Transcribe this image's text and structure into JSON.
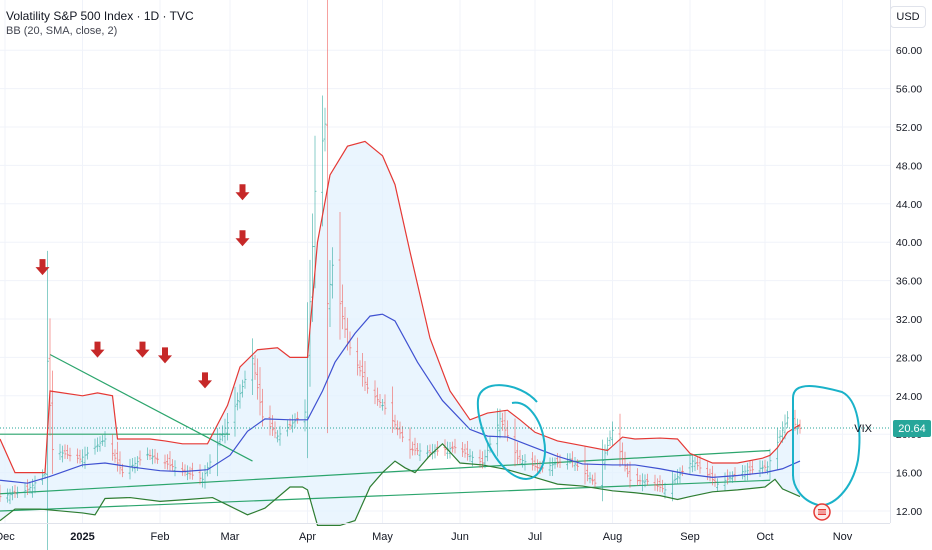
{
  "header": {
    "title": "Volatility S&P 500 Index · 1D · TVC",
    "indicator": "BB (20, SMA, close, 2)",
    "currency_button": "USD"
  },
  "colors": {
    "price_bar": "#9e9e9e",
    "up_bar": "#26a69a",
    "down_bar": "#ef5350",
    "bb_upper": "#e53935",
    "bb_basis": "#3f51d1",
    "bb_lower": "#2e7d32",
    "bb_fill": "#e3f2fd",
    "trendline": "#2ca56d",
    "arrow": "#c62828",
    "circle": "#1ab2c9",
    "last_price_bg": "#26a69a",
    "grid": "#f0f3fa"
  },
  "chart_data": {
    "type": "line",
    "title": "Volatility S&P 500 Index · 1D · TVC",
    "symbol": "VIX",
    "last_price": "20.64",
    "ylim": [
      11,
      63
    ],
    "yticks": [
      "60.00",
      "56.00",
      "52.00",
      "48.00",
      "44.00",
      "40.00",
      "36.00",
      "32.00",
      "28.00",
      "24.00",
      "20.00",
      "16.00",
      "12.00"
    ],
    "xticks": [
      "Dec",
      "2025",
      "Feb",
      "Mar",
      "Apr",
      "May",
      "Jun",
      "Jul",
      "Aug",
      "Sep",
      "Oct",
      "Nov"
    ],
    "xtick_dates": [
      "2024-12-01",
      "2025-01-01",
      "2025-02-01",
      "2025-03-01",
      "2025-04-01",
      "2025-05-01",
      "2025-06-01",
      "2025-07-01",
      "2025-08-01",
      "2025-09-01",
      "2025-10-01",
      "2025-11-01"
    ],
    "xlim": [
      "2024-11-29",
      "2025-11-20"
    ],
    "grid": true,
    "series": [
      {
        "name": "BB upper",
        "color": "#e53935",
        "points": [
          [
            "2024-11-29",
            19.5
          ],
          [
            "2024-12-05",
            16.0
          ],
          [
            "2024-12-17",
            16.0
          ],
          [
            "2024-12-19",
            24.5
          ],
          [
            "2025-01-01",
            24.0
          ],
          [
            "2025-01-07",
            24.3
          ],
          [
            "2025-01-13",
            24.0
          ],
          [
            "2025-01-15",
            19.5
          ],
          [
            "2025-01-28",
            19.5
          ],
          [
            "2025-02-03",
            19.3
          ],
          [
            "2025-02-10",
            19.0
          ],
          [
            "2025-02-20",
            19.0
          ],
          [
            "2025-02-28",
            23.0
          ],
          [
            "2025-03-05",
            27.0
          ],
          [
            "2025-03-12",
            28.8
          ],
          [
            "2025-03-20",
            29.0
          ],
          [
            "2025-03-25",
            28.0
          ],
          [
            "2025-04-01",
            28.0
          ],
          [
            "2025-04-05",
            40.0
          ],
          [
            "2025-04-10",
            47.0
          ],
          [
            "2025-04-17",
            50.0
          ],
          [
            "2025-04-24",
            50.5
          ],
          [
            "2025-05-01",
            49.0
          ],
          [
            "2025-05-06",
            46.0
          ],
          [
            "2025-05-12",
            39.0
          ],
          [
            "2025-05-20",
            30.0
          ],
          [
            "2025-05-28",
            24.5
          ],
          [
            "2025-06-05",
            21.5
          ],
          [
            "2025-06-12",
            22.2
          ],
          [
            "2025-06-20",
            22.5
          ],
          [
            "2025-06-25",
            21.5
          ],
          [
            "2025-07-01",
            20.2
          ],
          [
            "2025-07-10",
            19.3
          ],
          [
            "2025-07-20",
            18.8
          ],
          [
            "2025-07-30",
            18.3
          ],
          [
            "2025-08-05",
            19.7
          ],
          [
            "2025-08-10",
            19.5
          ],
          [
            "2025-08-20",
            19.6
          ],
          [
            "2025-08-27",
            19.5
          ],
          [
            "2025-09-01",
            18.0
          ],
          [
            "2025-09-10",
            17.0
          ],
          [
            "2025-09-20",
            17.0
          ],
          [
            "2025-09-30",
            17.5
          ],
          [
            "2025-10-03",
            17.8
          ],
          [
            "2025-10-06",
            18.6
          ],
          [
            "2025-10-10",
            20.2
          ],
          [
            "2025-10-15",
            21.0
          ]
        ]
      },
      {
        "name": "BB basis",
        "color": "#3f51d1",
        "points": [
          [
            "2024-11-29",
            15.2
          ],
          [
            "2024-12-10",
            14.9
          ],
          [
            "2024-12-19",
            15.6
          ],
          [
            "2025-01-01",
            16.8
          ],
          [
            "2025-01-10",
            17.0
          ],
          [
            "2025-01-20",
            16.6
          ],
          [
            "2025-02-01",
            16.2
          ],
          [
            "2025-02-10",
            16.1
          ],
          [
            "2025-02-20",
            16.3
          ],
          [
            "2025-03-01",
            17.8
          ],
          [
            "2025-03-08",
            20.3
          ],
          [
            "2025-03-15",
            21.6
          ],
          [
            "2025-03-25",
            21.5
          ],
          [
            "2025-04-01",
            21.5
          ],
          [
            "2025-04-07",
            24.5
          ],
          [
            "2025-04-12",
            27.5
          ],
          [
            "2025-04-20",
            30.5
          ],
          [
            "2025-04-26",
            32.3
          ],
          [
            "2025-05-01",
            32.5
          ],
          [
            "2025-05-06",
            31.8
          ],
          [
            "2025-05-15",
            27.5
          ],
          [
            "2025-05-25",
            23.5
          ],
          [
            "2025-06-05",
            20.5
          ],
          [
            "2025-06-12",
            19.8
          ],
          [
            "2025-06-20",
            19.7
          ],
          [
            "2025-07-01",
            18.6
          ],
          [
            "2025-07-10",
            17.7
          ],
          [
            "2025-07-20",
            16.9
          ],
          [
            "2025-08-01",
            16.8
          ],
          [
            "2025-08-10",
            16.8
          ],
          [
            "2025-08-20",
            16.4
          ],
          [
            "2025-09-01",
            15.8
          ],
          [
            "2025-09-10",
            15.5
          ],
          [
            "2025-09-20",
            15.7
          ],
          [
            "2025-10-01",
            16.0
          ],
          [
            "2025-10-08",
            16.4
          ],
          [
            "2025-10-15",
            17.2
          ]
        ]
      },
      {
        "name": "BB lower",
        "color": "#2e7d32",
        "points": [
          [
            "2024-11-29",
            11.0
          ],
          [
            "2024-12-05",
            12.2
          ],
          [
            "2024-12-15",
            12.2
          ],
          [
            "2025-01-01",
            11.8
          ],
          [
            "2025-01-06",
            11.6
          ],
          [
            "2025-01-10",
            13.3
          ],
          [
            "2025-01-20",
            13.4
          ],
          [
            "2025-02-01",
            13.0
          ],
          [
            "2025-02-12",
            13.2
          ],
          [
            "2025-02-22",
            13.4
          ],
          [
            "2025-03-01",
            12.5
          ],
          [
            "2025-03-08",
            11.6
          ],
          [
            "2025-03-15",
            12.3
          ],
          [
            "2025-03-25",
            14.5
          ],
          [
            "2025-03-30",
            14.5
          ],
          [
            "2025-04-01",
            14.2
          ],
          [
            "2025-04-05",
            10.5
          ],
          [
            "2025-04-14",
            10.5
          ],
          [
            "2025-04-20",
            11.0
          ],
          [
            "2025-04-26",
            14.5
          ],
          [
            "2025-05-01",
            16.0
          ],
          [
            "2025-05-06",
            17.2
          ],
          [
            "2025-05-10",
            16.5
          ],
          [
            "2025-05-14",
            16.0
          ],
          [
            "2025-05-20",
            17.8
          ],
          [
            "2025-05-25",
            19.0
          ],
          [
            "2025-06-01",
            17.0
          ],
          [
            "2025-06-10",
            16.8
          ],
          [
            "2025-06-20",
            16.3
          ],
          [
            "2025-07-01",
            15.5
          ],
          [
            "2025-07-10",
            14.8
          ],
          [
            "2025-07-20",
            14.6
          ],
          [
            "2025-08-01",
            14.1
          ],
          [
            "2025-08-10",
            13.9
          ],
          [
            "2025-08-20",
            13.6
          ],
          [
            "2025-08-27",
            13.2
          ],
          [
            "2025-09-01",
            13.5
          ],
          [
            "2025-09-10",
            14.0
          ],
          [
            "2025-09-20",
            14.2
          ],
          [
            "2025-10-01",
            14.5
          ],
          [
            "2025-10-05",
            15.3
          ],
          [
            "2025-10-08",
            14.3
          ],
          [
            "2025-10-15",
            13.5
          ]
        ]
      },
      {
        "name": "VIX close",
        "color": "#9e9e9e",
        "points": [
          [
            "2024-11-29",
            13.5
          ],
          [
            "2024-12-10",
            14.2
          ],
          [
            "2024-12-17",
            15.9
          ],
          [
            "2024-12-18",
            27.6
          ],
          [
            "2024-12-20",
            18.4
          ],
          [
            "2024-12-31",
            17.4
          ],
          [
            "2025-01-10",
            19.5
          ],
          [
            "2025-01-17",
            16.0
          ],
          [
            "2025-01-27",
            17.9
          ],
          [
            "2025-02-07",
            16.5
          ],
          [
            "2025-02-18",
            15.3
          ],
          [
            "2025-02-24",
            18.9
          ],
          [
            "2025-03-04",
            23.5
          ],
          [
            "2025-03-10",
            27.9
          ],
          [
            "2025-03-14",
            21.8
          ],
          [
            "2025-03-20",
            19.8
          ],
          [
            "2025-03-31",
            22.3
          ],
          [
            "2025-04-04",
            45.3
          ],
          [
            "2025-04-08",
            52.3
          ],
          [
            "2025-04-09",
            33.6
          ],
          [
            "2025-04-11",
            37.6
          ],
          [
            "2025-04-17",
            29.6
          ],
          [
            "2025-04-25",
            24.8
          ],
          [
            "2025-05-02",
            22.7
          ],
          [
            "2025-05-12",
            18.4
          ],
          [
            "2025-05-20",
            18.1
          ],
          [
            "2025-05-30",
            18.6
          ],
          [
            "2025-06-10",
            17.0
          ],
          [
            "2025-06-17",
            21.6
          ],
          [
            "2025-06-24",
            17.5
          ],
          [
            "2025-07-03",
            16.4
          ],
          [
            "2025-07-15",
            17.4
          ],
          [
            "2025-07-25",
            14.9
          ],
          [
            "2025-08-01",
            20.4
          ],
          [
            "2025-08-08",
            15.2
          ],
          [
            "2025-08-15",
            15.1
          ],
          [
            "2025-08-22",
            14.2
          ],
          [
            "2025-09-02",
            17.2
          ],
          [
            "2025-09-12",
            14.8
          ],
          [
            "2025-09-22",
            16.1
          ],
          [
            "2025-10-02",
            16.6
          ],
          [
            "2025-10-10",
            21.7
          ],
          [
            "2025-10-14",
            20.8
          ],
          [
            "2025-10-15",
            20.6
          ]
        ]
      }
    ],
    "annotations": {
      "arrows": [
        {
          "date": "2024-12-16",
          "value": 37.2
        },
        {
          "date": "2025-01-07",
          "value": 28.6
        },
        {
          "date": "2025-01-25",
          "value": 28.6
        },
        {
          "date": "2025-02-03",
          "value": 28.0
        },
        {
          "date": "2025-02-19",
          "value": 25.4
        },
        {
          "date": "2025-03-06",
          "value": 45.0
        },
        {
          "date": "2025-03-06",
          "value": 40.2
        }
      ],
      "trend_lines": [
        {
          "from": [
            "2024-12-19",
            28.3
          ],
          "to": [
            "2025-03-10",
            17.2
          ]
        },
        {
          "from": [
            "2024-11-29",
            20.0
          ],
          "to": [
            "2025-03-01",
            20.0
          ]
        },
        {
          "from": [
            "2024-11-29",
            13.8
          ],
          "to": [
            "2025-10-03",
            18.3
          ]
        },
        {
          "from": [
            "2024-11-29",
            12.0
          ],
          "to": [
            "2025-10-03",
            15.2
          ]
        }
      ]
    }
  }
}
